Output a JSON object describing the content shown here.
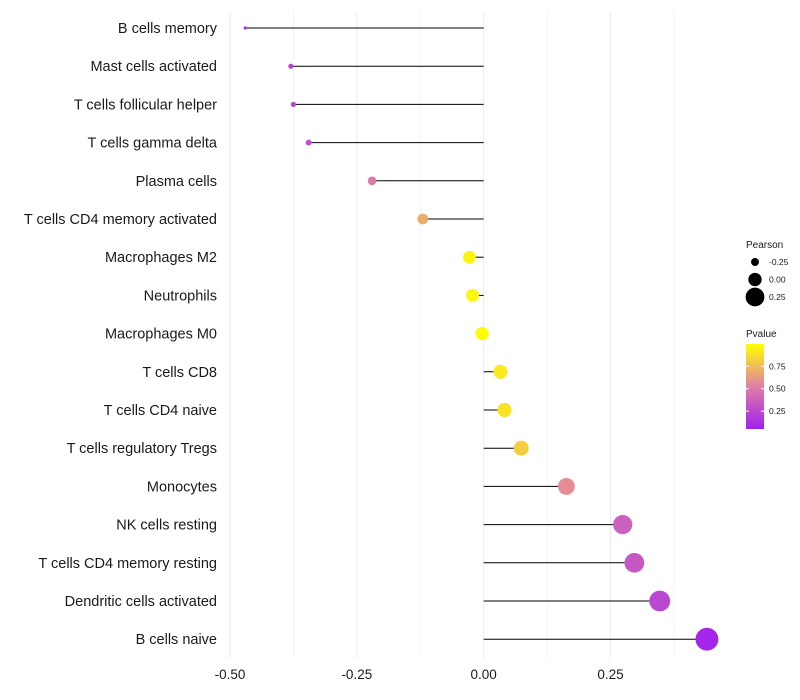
{
  "chart_data": {
    "type": "lollipop",
    "title": "",
    "xlabel": "",
    "ylabel": "",
    "xlim": [
      -0.5,
      0.45
    ],
    "x_ticks": [
      -0.5,
      -0.25,
      0.0,
      0.25
    ],
    "x_tick_labels": [
      "-0.50",
      "-0.25",
      "0.00",
      "0.25"
    ],
    "grid": true,
    "categories": [
      "B cells memory",
      "Mast cells activated",
      "T cells follicular helper",
      "T cells gamma delta",
      "Plasma cells",
      "T cells CD4 memory activated",
      "Macrophages M2",
      "Neutrophils",
      "Macrophages M0",
      "T cells CD8",
      "T cells CD4 naive",
      "T cells regulatory  Tregs ",
      "Monocytes",
      "NK cells resting",
      "T cells CD4 memory resting",
      "Dendritic cells activated",
      "B cells naive"
    ],
    "pearson": [
      -0.47,
      -0.38,
      -0.375,
      -0.345,
      -0.22,
      -0.12,
      -0.028,
      -0.022,
      -0.003,
      0.033,
      0.041,
      0.074,
      0.163,
      0.274,
      0.297,
      0.347,
      0.44
    ],
    "pvalue": [
      0.1,
      0.22,
      0.23,
      0.29,
      0.5,
      0.7,
      0.96,
      0.97,
      0.99,
      0.92,
      0.9,
      0.82,
      0.58,
      0.37,
      0.33,
      0.25,
      0.08
    ],
    "legend": {
      "size": {
        "title": "Pearson",
        "labels": [
          "-0.25",
          "0.00",
          "0.25"
        ],
        "values": [
          -0.25,
          0.0,
          0.25
        ]
      },
      "color": {
        "title": "Pvalue",
        "labels": [
          "0.75",
          "0.50",
          "0.25"
        ],
        "values": [
          0.75,
          0.5,
          0.25
        ],
        "range": [
          0.05,
          1.0
        ],
        "low_color": "#a020f0",
        "mid_color": "#e07fa6",
        "high_color": "#ffff00"
      },
      "placement": "right"
    }
  }
}
